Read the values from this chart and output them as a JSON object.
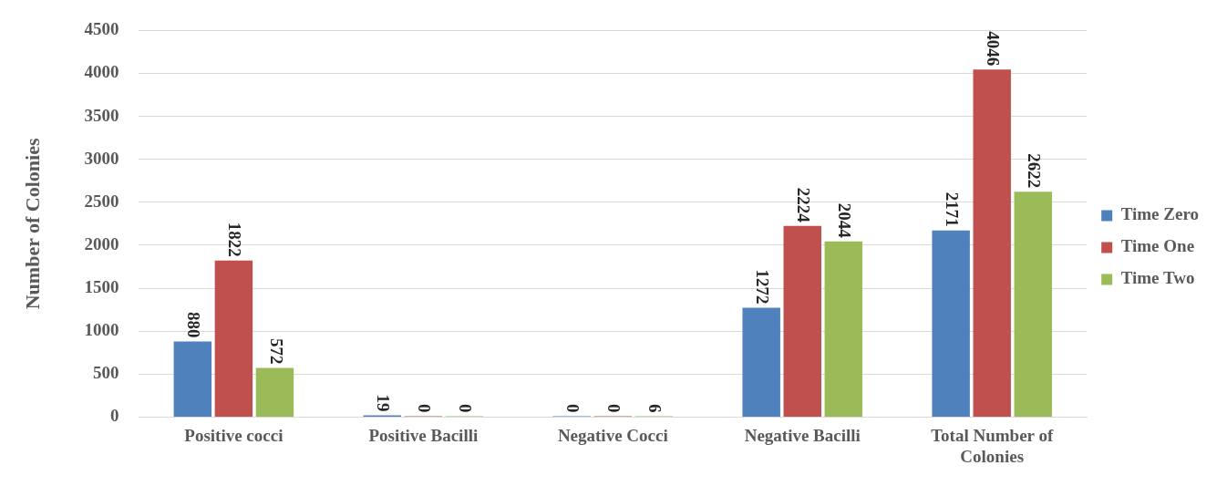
{
  "chart_data": {
    "type": "bar",
    "ylabel": "Number of Colonies",
    "categories": [
      "Positive cocci",
      "Positive Bacilli",
      "Negative Cocci",
      "Negative Bacilli",
      "Total Number of Colonies"
    ],
    "series": [
      {
        "name": "Time Zero",
        "color": "#4f81bd",
        "values": [
          880,
          19,
          0,
          1272,
          2171
        ]
      },
      {
        "name": "Time One",
        "color": "#c0504d",
        "values": [
          1822,
          0,
          0,
          2224,
          4046
        ]
      },
      {
        "name": "Time Two",
        "color": "#9bbb59",
        "values": [
          572,
          0,
          6,
          2044,
          2622
        ]
      }
    ],
    "ylim": [
      0,
      4500
    ],
    "yticks": [
      0,
      500,
      1000,
      1500,
      2000,
      2500,
      3000,
      3500,
      4000,
      4500
    ],
    "grid": "y",
    "legend": "right",
    "data_labels": true
  }
}
